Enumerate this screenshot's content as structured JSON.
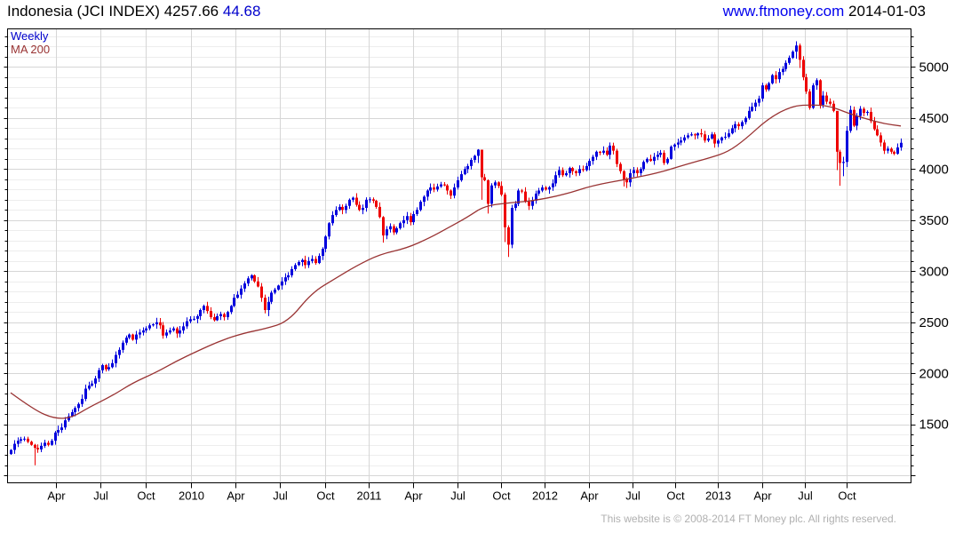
{
  "header": {
    "instrument": "Indonesia (JCI INDEX)",
    "last": "4257.66",
    "change": "44.68",
    "site": "www.ftmoney.com",
    "date": "2014-01-03"
  },
  "legend": {
    "series": "Weekly",
    "ma": "MA 200"
  },
  "footer": {
    "copyright": "This website is © 2008-2014 FT Money plc. All rights reserved."
  },
  "chart_data": {
    "type": "candlestick",
    "title": "Indonesia (JCI INDEX)",
    "interval": "Weekly",
    "overlay": "MA 200",
    "last_close": 4257.66,
    "change": 44.68,
    "first_open": 1210,
    "weekly_closes": [
      1250,
      1310,
      1340,
      1355,
      1360,
      1330,
      1300,
      1270,
      1255,
      1290,
      1320,
      1300,
      1340,
      1420,
      1445,
      1470,
      1540,
      1580,
      1620,
      1660,
      1700,
      1750,
      1850,
      1880,
      1900,
      1950,
      2030,
      2080,
      2040,
      2060,
      2100,
      2180,
      2230,
      2300,
      2350,
      2380,
      2330,
      2380,
      2400,
      2420,
      2440,
      2470,
      2480,
      2500,
      2470,
      2370,
      2400,
      2420,
      2440,
      2390,
      2420,
      2460,
      2510,
      2530,
      2534,
      2560,
      2620,
      2660,
      2610,
      2550,
      2520,
      2560,
      2580,
      2550,
      2600,
      2660,
      2740,
      2770,
      2830,
      2880,
      2930,
      2960,
      2900,
      2850,
      2740,
      2620,
      2700,
      2790,
      2820,
      2860,
      2900,
      2940,
      2960,
      3020,
      3060,
      3090,
      3110,
      3060,
      3100,
      3120,
      3080,
      3150,
      3220,
      3340,
      3470,
      3550,
      3600,
      3630,
      3600,
      3640,
      3700,
      3720,
      3650,
      3600,
      3620,
      3700,
      3704,
      3690,
      3630,
      3530,
      3350,
      3410,
      3440,
      3380,
      3420,
      3470,
      3500,
      3540,
      3480,
      3560,
      3600,
      3680,
      3730,
      3790,
      3820,
      3800,
      3830,
      3850,
      3840,
      3790,
      3740,
      3820,
      3890,
      3950,
      4000,
      4030,
      4090,
      4130,
      4190,
      3920,
      3890,
      3660,
      3840,
      3870,
      3835,
      3750,
      3430,
      3260,
      3620,
      3660,
      3790,
      3780,
      3680,
      3640,
      3690,
      3760,
      3790,
      3820,
      3800,
      3822,
      3860,
      3940,
      3990,
      3940,
      3960,
      4010,
      3980,
      3960,
      4000,
      3990,
      4030,
      4080,
      4120,
      4170,
      4160,
      4180,
      4140,
      4230,
      4180,
      4050,
      3980,
      3900,
      3870,
      3960,
      3990,
      3960,
      4000,
      4070,
      4100,
      4080,
      4120,
      4140,
      4160,
      4060,
      4100,
      4220,
      4240,
      4260,
      4280,
      4310,
      4330,
      4340,
      4330,
      4350,
      4340,
      4280,
      4300,
      4340,
      4250,
      4280,
      4310,
      4317,
      4350,
      4400,
      4440,
      4420,
      4460,
      4500,
      4570,
      4610,
      4650,
      4690,
      4820,
      4780,
      4840,
      4920,
      4880,
      4950,
      4980,
      5040,
      5090,
      5150,
      5210,
      5070,
      4900,
      4760,
      4600,
      4820,
      4870,
      4630,
      4720,
      4660,
      4640,
      4570,
      4170,
      4060,
      4070,
      4375,
      4580,
      4425,
      4520,
      4590,
      4550,
      4560,
      4470,
      4390,
      4330,
      4260,
      4180,
      4200,
      4170,
      4150,
      4212,
      4257.66
    ],
    "wick_overrides": {
      "7": [
        1310,
        1100
      ],
      "76": [
        2750,
        2560
      ],
      "110": [
        3540,
        3280
      ],
      "138": [
        4195,
        4060
      ],
      "139": [
        4150,
        3700
      ],
      "141": [
        3900,
        3565
      ],
      "146": [
        3770,
        3285
      ],
      "147": [
        3450,
        3140
      ],
      "181": [
        3990,
        3830
      ],
      "182": [
        3920,
        3815
      ],
      "232": [
        5251,
        5080
      ],
      "233": [
        5230,
        4990
      ],
      "244": [
        4560,
        3990
      ],
      "245": [
        4190,
        3837
      ],
      "246": [
        4120,
        3930
      ],
      "247": [
        4420,
        4020
      ],
      "263": [
        4300,
        4180
      ]
    },
    "ma200_points": [
      [
        0,
        1810
      ],
      [
        7,
        1640
      ],
      [
        13,
        1555
      ],
      [
        18,
        1565
      ],
      [
        23,
        1665
      ],
      [
        30,
        1780
      ],
      [
        36,
        1905
      ],
      [
        43,
        2010
      ],
      [
        49,
        2120
      ],
      [
        55,
        2215
      ],
      [
        62,
        2320
      ],
      [
        69,
        2395
      ],
      [
        75,
        2435
      ],
      [
        82,
        2505
      ],
      [
        89,
        2790
      ],
      [
        96,
        2930
      ],
      [
        102,
        3050
      ],
      [
        109,
        3165
      ],
      [
        117,
        3225
      ],
      [
        124,
        3330
      ],
      [
        129,
        3420
      ],
      [
        135,
        3530
      ],
      [
        140,
        3640
      ],
      [
        148,
        3672
      ],
      [
        154,
        3688
      ],
      [
        163,
        3745
      ],
      [
        172,
        3840
      ],
      [
        182,
        3900
      ],
      [
        191,
        3960
      ],
      [
        199,
        4040
      ],
      [
        207,
        4115
      ],
      [
        212,
        4170
      ],
      [
        217,
        4290
      ],
      [
        224,
        4500
      ],
      [
        231,
        4620
      ],
      [
        237,
        4630
      ],
      [
        242,
        4618
      ],
      [
        248,
        4540
      ],
      [
        253,
        4490
      ],
      [
        258,
        4445
      ],
      [
        263,
        4422
      ]
    ],
    "y_axis": {
      "min": 928,
      "max": 5373,
      "minor_step": 100,
      "major_step": 500,
      "labels": [
        1500,
        2000,
        2500,
        3000,
        3500,
        4000,
        4500,
        5000
      ]
    },
    "x_ticks": [
      {
        "label": "Apr",
        "week": 13.4
      },
      {
        "label": "Jul",
        "week": 26.6
      },
      {
        "label": "Oct",
        "week": 39.9
      },
      {
        "label": "2010",
        "week": 53.2
      },
      {
        "label": "Apr",
        "week": 66.4
      },
      {
        "label": "Jul",
        "week": 79.5
      },
      {
        "label": "Oct",
        "week": 92.8
      },
      {
        "label": "2011",
        "week": 105.8
      },
      {
        "label": "Apr",
        "week": 118.9
      },
      {
        "label": "Jul",
        "week": 132.0
      },
      {
        "label": "Oct",
        "week": 144.9
      },
      {
        "label": "2012",
        "week": 157.8
      },
      {
        "label": "Apr",
        "week": 170.9
      },
      {
        "label": "Jul",
        "week": 183.7
      },
      {
        "label": "Oct",
        "week": 196.3
      },
      {
        "label": "2013",
        "week": 208.9
      },
      {
        "label": "Apr",
        "week": 222.0
      },
      {
        "label": "Jul",
        "week": 234.7
      },
      {
        "label": "Oct",
        "week": 247.0
      }
    ],
    "colors": {
      "up": "#0000dd",
      "down": "#ee0000",
      "ma": "#993333",
      "grid_minor": "#ededed",
      "grid_major": "#d6d6d6",
      "border": "#000000",
      "text": "#000000",
      "title_change": "#0000cc",
      "link": "#0000ee",
      "footer": "#b0b0b0"
    }
  }
}
